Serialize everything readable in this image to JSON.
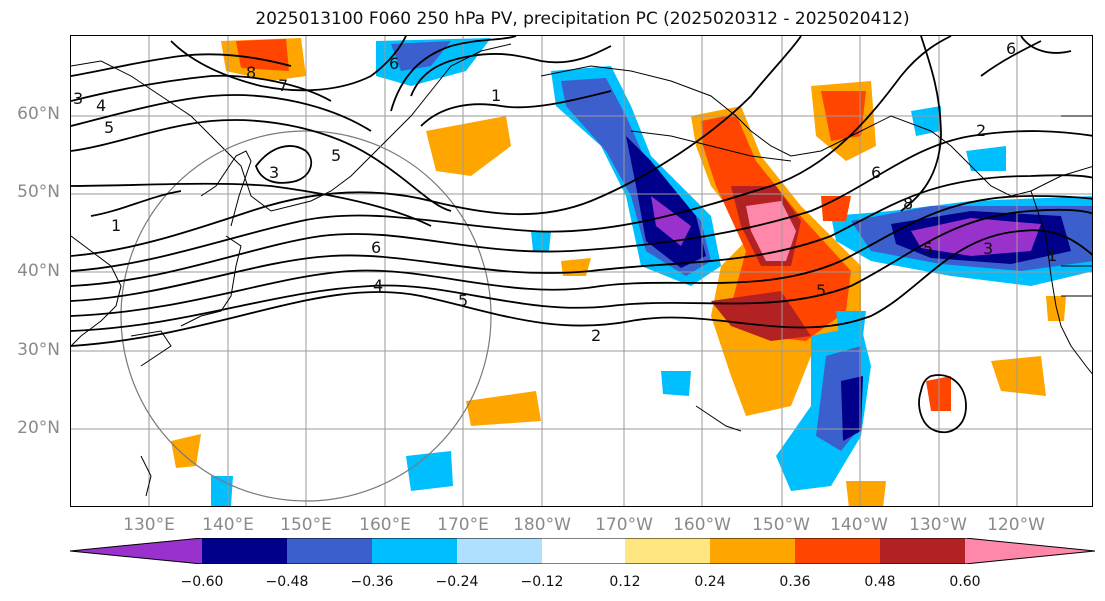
{
  "title": "2025013100 F060 250 hPa PV, precipitation PC (2025020312 - 2025020412)",
  "lat_labels": [
    "60°N",
    "50°N",
    "40°N",
    "30°N",
    "20°N"
  ],
  "lon_labels": [
    "130°E",
    "140°E",
    "150°E",
    "160°E",
    "170°E",
    "180°W",
    "170°W",
    "160°W",
    "150°W",
    "140°W",
    "130°W",
    "120°W"
  ],
  "colorbar": {
    "colors": [
      "#9932cc",
      "#00008b",
      "#3b5fcd",
      "#00bfff",
      "#b0e0ff",
      "#ffffff",
      "#ffffff",
      "#ffe680",
      "#ffa500",
      "#ff4500",
      "#b22222",
      "#ff88aa"
    ],
    "tick_labels": [
      "−0.60",
      "−0.48",
      "−0.36",
      "−0.24",
      "−0.12",
      "0.12",
      "0.24",
      "0.36",
      "0.48",
      "0.60"
    ]
  },
  "contour_labels": [
    "3",
    "4",
    "5",
    "7",
    "8",
    "6",
    "5",
    "3",
    "1",
    "6",
    "4",
    "5",
    "2",
    "1",
    "5",
    "6",
    "8",
    "5",
    "3",
    "1",
    "6",
    "2"
  ]
}
